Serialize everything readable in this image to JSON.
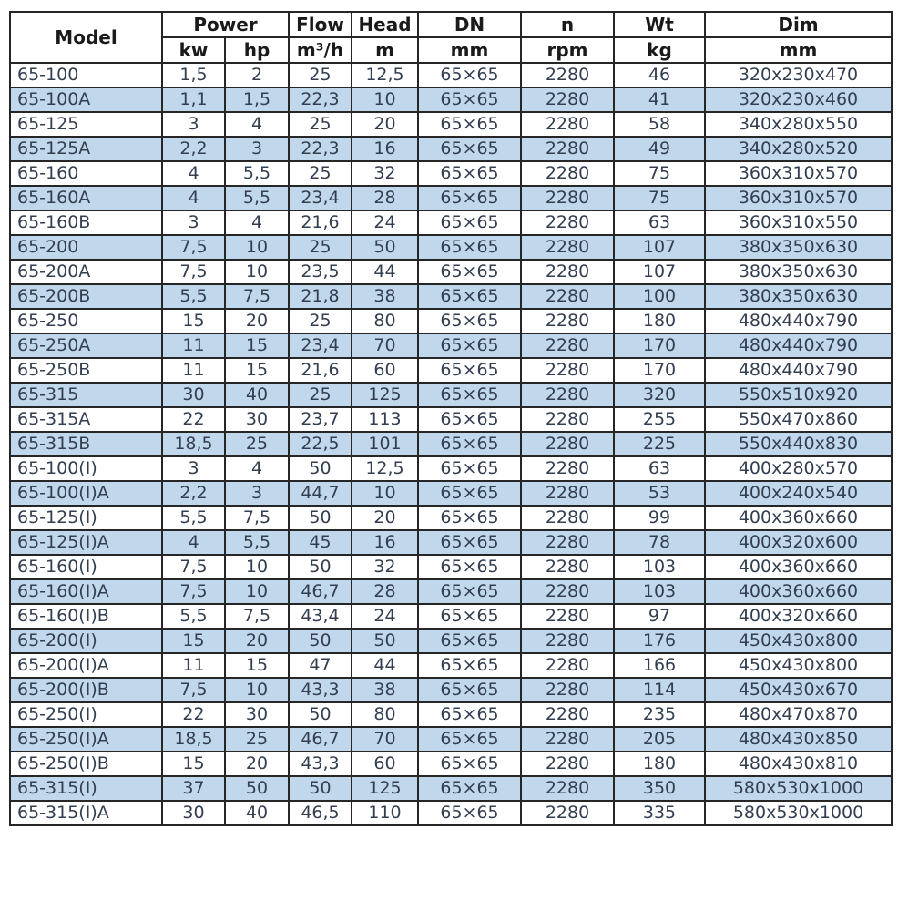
{
  "table": {
    "header": {
      "model": "Model",
      "power": "Power",
      "flow": "Flow",
      "head": "Head",
      "dn": "DN",
      "n": "n",
      "wt": "Wt",
      "dim": "Dim",
      "units": {
        "kw": "kw",
        "hp": "hp",
        "flow": "m³/h",
        "head": "m",
        "dn": "mm",
        "n": "rpm",
        "wt": "kg",
        "dim": "mm"
      }
    },
    "rows": [
      [
        "65-100",
        "1,5",
        "2",
        "25",
        "12,5",
        "65×65",
        "2280",
        "46",
        "320x230x470"
      ],
      [
        "65-100A",
        "1,1",
        "1,5",
        "22,3",
        "10",
        "65×65",
        "2280",
        "41",
        "320x230x460"
      ],
      [
        "65-125",
        "3",
        "4",
        "25",
        "20",
        "65×65",
        "2280",
        "58",
        "340x280x550"
      ],
      [
        "65-125A",
        "2,2",
        "3",
        "22,3",
        "16",
        "65×65",
        "2280",
        "49",
        "340x280x520"
      ],
      [
        "65-160",
        "4",
        "5,5",
        "25",
        "32",
        "65×65",
        "2280",
        "75",
        "360x310x570"
      ],
      [
        "65-160A",
        "4",
        "5,5",
        "23,4",
        "28",
        "65×65",
        "2280",
        "75",
        "360x310x570"
      ],
      [
        "65-160B",
        "3",
        "4",
        "21,6",
        "24",
        "65×65",
        "2280",
        "63",
        "360x310x550"
      ],
      [
        "65-200",
        "7,5",
        "10",
        "25",
        "50",
        "65×65",
        "2280",
        "107",
        "380x350x630"
      ],
      [
        "65-200A",
        "7,5",
        "10",
        "23,5",
        "44",
        "65×65",
        "2280",
        "107",
        "380x350x630"
      ],
      [
        "65-200B",
        "5,5",
        "7,5",
        "21,8",
        "38",
        "65×65",
        "2280",
        "100",
        "380x350x630"
      ],
      [
        "65-250",
        "15",
        "20",
        "25",
        "80",
        "65×65",
        "2280",
        "180",
        "480x440x790"
      ],
      [
        "65-250A",
        "11",
        "15",
        "23,4",
        "70",
        "65×65",
        "2280",
        "170",
        "480x440x790"
      ],
      [
        "65-250B",
        "11",
        "15",
        "21,6",
        "60",
        "65×65",
        "2280",
        "170",
        "480x440x790"
      ],
      [
        "65-315",
        "30",
        "40",
        "25",
        "125",
        "65×65",
        "2280",
        "320",
        "550x510x920"
      ],
      [
        "65-315A",
        "22",
        "30",
        "23,7",
        "113",
        "65×65",
        "2280",
        "255",
        "550x470x860"
      ],
      [
        "65-315B",
        "18,5",
        "25",
        "22,5",
        "101",
        "65×65",
        "2280",
        "225",
        "550x440x830"
      ],
      [
        "65-100(I)",
        "3",
        "4",
        "50",
        "12,5",
        "65×65",
        "2280",
        "63",
        "400x280x570"
      ],
      [
        "65-100(I)A",
        "2,2",
        "3",
        "44,7",
        "10",
        "65×65",
        "2280",
        "53",
        "400x240x540"
      ],
      [
        "65-125(I)",
        "5,5",
        "7,5",
        "50",
        "20",
        "65×65",
        "2280",
        "99",
        "400x360x660"
      ],
      [
        "65-125(I)A",
        "4",
        "5,5",
        "45",
        "16",
        "65×65",
        "2280",
        "78",
        "400x320x600"
      ],
      [
        "65-160(I)",
        "7,5",
        "10",
        "50",
        "32",
        "65×65",
        "2280",
        "103",
        "400x360x660"
      ],
      [
        "65-160(I)A",
        "7,5",
        "10",
        "46,7",
        "28",
        "65×65",
        "2280",
        "103",
        "400x360x660"
      ],
      [
        "65-160(I)B",
        "5,5",
        "7,5",
        "43,4",
        "24",
        "65×65",
        "2280",
        "97",
        "400x320x660"
      ],
      [
        "65-200(I)",
        "15",
        "20",
        "50",
        "50",
        "65×65",
        "2280",
        "176",
        "450x430x800"
      ],
      [
        "65-200(I)A",
        "11",
        "15",
        "47",
        "44",
        "65×65",
        "2280",
        "166",
        "450x430x800"
      ],
      [
        "65-200(I)B",
        "7,5",
        "10",
        "43,3",
        "38",
        "65×65",
        "2280",
        "114",
        "450x430x670"
      ],
      [
        "65-250(I)",
        "22",
        "30",
        "50",
        "80",
        "65×65",
        "2280",
        "235",
        "480x470x870"
      ],
      [
        "65-250(I)A",
        "18,5",
        "25",
        "46,7",
        "70",
        "65×65",
        "2280",
        "205",
        "480x430x850"
      ],
      [
        "65-250(I)B",
        "15",
        "20",
        "43,3",
        "60",
        "65×65",
        "2280",
        "180",
        "480x430x810"
      ],
      [
        "65-315(I)",
        "37",
        "50",
        "50",
        "125",
        "65×65",
        "2280",
        "350",
        "580x530x1000"
      ],
      [
        "65-315(I)A",
        "30",
        "40",
        "46,5",
        "110",
        "65×65",
        "2280",
        "335",
        "580x530x1000"
      ]
    ]
  },
  "colors": {
    "row_alt_blue": "#c1d8ec",
    "border": "#262626",
    "data_text": "#333f50",
    "header_text": "#1a1a1a"
  }
}
